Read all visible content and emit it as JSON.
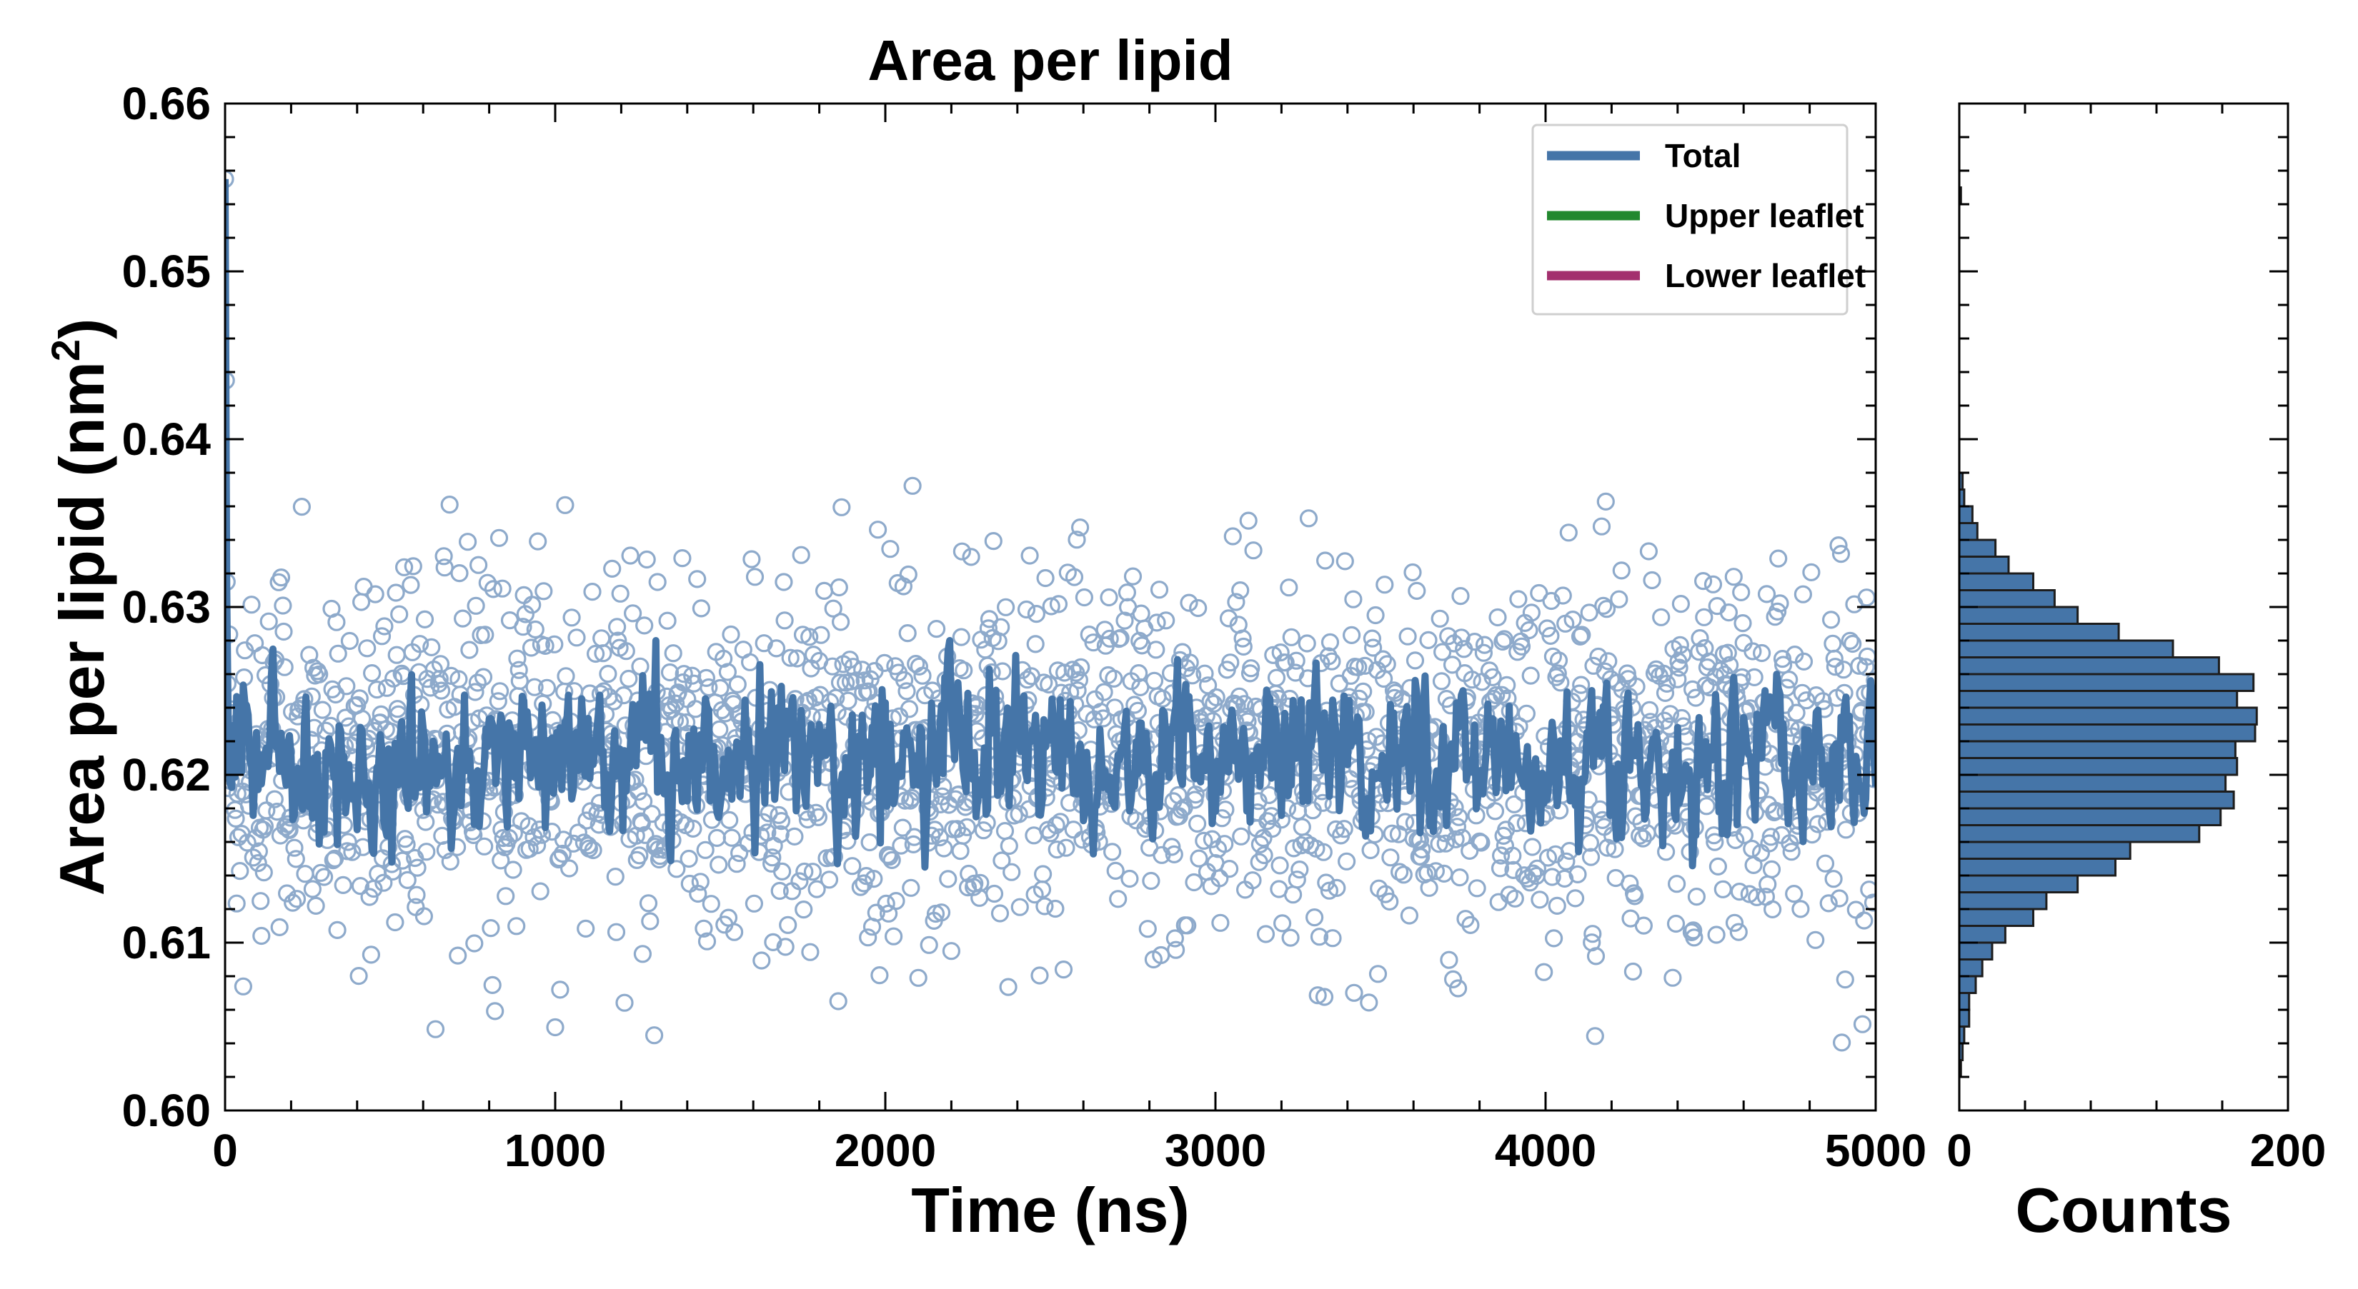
{
  "chart_data": [
    {
      "type": "scatter",
      "title": "Area per lipid",
      "xlabel": "Time (ns)",
      "ylabel": "Area per lipid (nm",
      "ylabel_superscript": "2",
      "ylabel_suffix": ")",
      "xlim": [
        0,
        5000
      ],
      "ylim": [
        0.6,
        0.66
      ],
      "x_ticks": [
        0,
        1000,
        2000,
        3000,
        4000,
        5000
      ],
      "x_tick_labels": [
        "0",
        "1000",
        "2000",
        "3000",
        "4000",
        "5000"
      ],
      "y_ticks": [
        0.6,
        0.61,
        0.62,
        0.63,
        0.64,
        0.65,
        0.66
      ],
      "y_tick_labels": [
        "0.60",
        "0.61",
        "0.62",
        "0.63",
        "0.64",
        "0.65",
        "0.66"
      ],
      "grid": false,
      "legend_position": "top-right",
      "series": [
        {
          "name": "Total",
          "color": "#4575a8",
          "style": "line + open circles (raw samples)"
        },
        {
          "name": "Upper leaflet",
          "color": "#22882e",
          "style": "line"
        },
        {
          "name": "Lower leaflet",
          "color": "#a3306e",
          "style": "line"
        }
      ],
      "raw_points": {
        "count": 2001,
        "mean": 0.621,
        "std": 0.0055,
        "t_start": 0,
        "t_end": 5000,
        "initial_value": 0.6555
      },
      "smoothed_line": {
        "mean": 0.621,
        "range": [
          0.6145,
          0.628
        ],
        "initial_value": 0.6555
      }
    },
    {
      "type": "bar",
      "orientation": "horizontal",
      "title": "",
      "xlabel": "Counts",
      "ylabel": "",
      "xlim": [
        0,
        200
      ],
      "ylim": [
        0.6,
        0.66
      ],
      "x_ticks": [
        0,
        200
      ],
      "x_tick_labels": [
        "0",
        "200"
      ],
      "bin_width": 0.001,
      "bin_edges_start": 0.602,
      "counts": [
        1,
        2,
        3,
        6,
        6,
        10,
        14,
        20,
        28,
        45,
        53,
        72,
        95,
        104,
        146,
        159,
        167,
        162,
        169,
        168,
        180,
        181,
        169,
        179,
        158,
        130,
        97,
        72,
        58,
        45,
        30,
        22,
        11,
        8,
        3,
        2
      ],
      "color": "#4575a8",
      "extra_bins": [
        {
          "center": 0.6545,
          "count": 1
        }
      ]
    }
  ]
}
